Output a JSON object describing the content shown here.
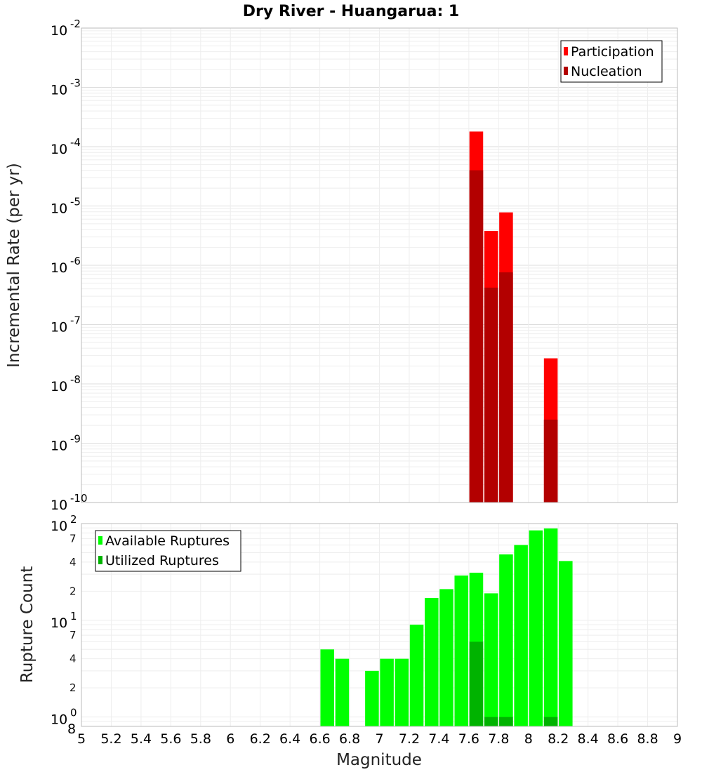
{
  "chart_data": [
    {
      "type": "bar",
      "title": "Dry River - Huangarua: 1",
      "ylabel": "Incremental Rate (per yr)",
      "yscale": "log",
      "ylim": [
        1e-10,
        0.01
      ],
      "xlim": [
        5,
        9
      ],
      "grid": true,
      "legend_placement": "top-right",
      "ytick_labels": [
        {
          "value": 1e-10,
          "base": "10",
          "exp": "-10"
        },
        {
          "value": 1e-09,
          "base": "10",
          "exp": "-9"
        },
        {
          "value": 1e-08,
          "base": "10",
          "exp": "-8"
        },
        {
          "value": 1e-07,
          "base": "10",
          "exp": "-7"
        },
        {
          "value": 1e-06,
          "base": "10",
          "exp": "-6"
        },
        {
          "value": 1e-05,
          "base": "10",
          "exp": "-5"
        },
        {
          "value": 0.0001,
          "base": "10",
          "exp": "-4"
        },
        {
          "value": 0.001,
          "base": "10",
          "exp": "-3"
        },
        {
          "value": 0.01,
          "base": "10",
          "exp": "-2"
        }
      ],
      "series": [
        {
          "name": "Participation",
          "color": "#ff0000",
          "x": [
            7.65,
            7.75,
            7.85,
            8.15
          ],
          "values": [
            0.00018,
            3.8e-06,
            7.8e-06,
            2.7e-08
          ]
        },
        {
          "name": "Nucleation",
          "color": "#b30000",
          "x": [
            7.65,
            7.75,
            7.85,
            8.15
          ],
          "values": [
            4e-05,
            4.2e-07,
            7.6e-07,
            2.5e-09
          ]
        }
      ]
    },
    {
      "type": "bar",
      "ylabel": "Rupture Count",
      "xlabel": "Magnitude",
      "yscale": "log",
      "ylim": [
        0.8,
        100
      ],
      "xlim": [
        5,
        9
      ],
      "grid": true,
      "legend_placement": "top-left",
      "xtick_labels": [
        "5",
        "5.2",
        "5.4",
        "5.6",
        "5.8",
        "6",
        "6.2",
        "6.4",
        "6.6",
        "6.8",
        "7",
        "7.2",
        "7.4",
        "7.6",
        "7.8",
        "8",
        "8.2",
        "8.4",
        "8.6",
        "8.8",
        "9"
      ],
      "ytick_labels": [
        {
          "value": 1,
          "base": "10",
          "exp": "0"
        },
        {
          "value": 10,
          "base": "10",
          "exp": "1"
        },
        {
          "value": 100,
          "base": "10",
          "exp": "2"
        }
      ],
      "minor_tick_labels": [
        {
          "value": 0.8,
          "label": "8"
        },
        {
          "value": 2,
          "label": "2"
        },
        {
          "value": 4,
          "label": "4"
        },
        {
          "value": 7,
          "label": "7"
        },
        {
          "value": 20,
          "label": "2"
        },
        {
          "value": 40,
          "label": "4"
        },
        {
          "value": 70,
          "label": "7"
        }
      ],
      "series": [
        {
          "name": "Available Ruptures",
          "color": "#00ff00",
          "x": [
            6.65,
            6.75,
            6.95,
            7.05,
            7.15,
            7.25,
            7.35,
            7.45,
            7.55,
            7.65,
            7.75,
            7.85,
            7.95,
            8.05,
            8.15,
            8.25
          ],
          "values": [
            5,
            4,
            3,
            4,
            4,
            9,
            17,
            21,
            29,
            31,
            19,
            48,
            60,
            85,
            89,
            41
          ]
        },
        {
          "name": "Utilized Ruptures",
          "color": "#00b300",
          "x": [
            7.65,
            7.75,
            7.85,
            8.15
          ],
          "values": [
            6,
            1,
            1,
            1
          ]
        }
      ]
    }
  ]
}
